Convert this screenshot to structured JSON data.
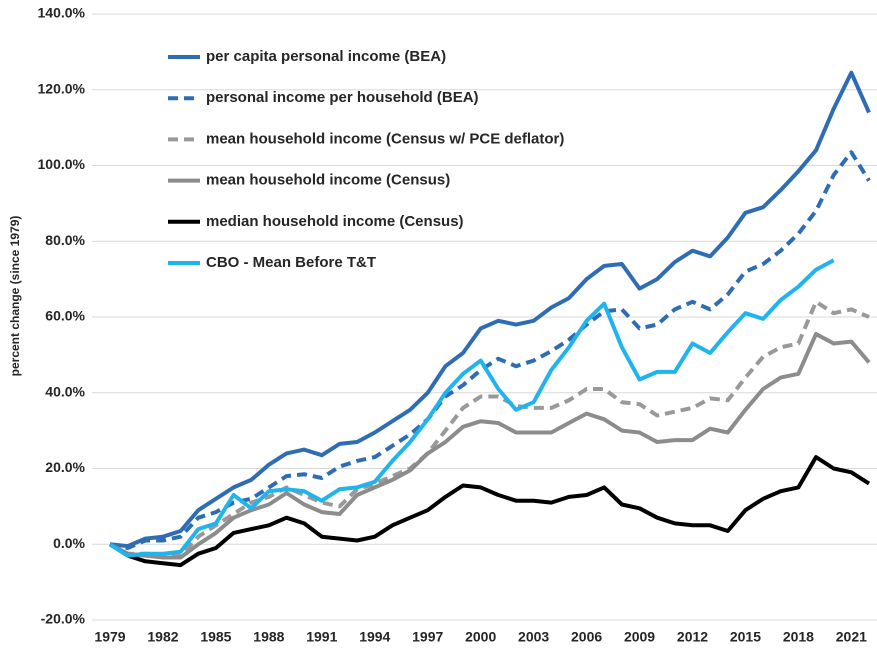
{
  "chart_data": {
    "type": "line",
    "y_label": "percent change (since 1979)",
    "x": [
      1979,
      1980,
      1981,
      1982,
      1983,
      1984,
      1985,
      1986,
      1987,
      1988,
      1989,
      1990,
      1991,
      1992,
      1993,
      1994,
      1995,
      1996,
      1997,
      1998,
      1999,
      2000,
      2001,
      2002,
      2003,
      2004,
      2005,
      2006,
      2007,
      2008,
      2009,
      2010,
      2011,
      2012,
      2013,
      2014,
      2015,
      2016,
      2017,
      2018,
      2019,
      2020,
      2021,
      2022
    ],
    "xlim": [
      1979,
      2022
    ],
    "xticks": [
      1979,
      1982,
      1985,
      1988,
      1991,
      1994,
      1997,
      2000,
      2003,
      2006,
      2009,
      2012,
      2015,
      2018,
      2021
    ],
    "ylim": [
      -20,
      140
    ],
    "yticks": [
      {
        "value": -20,
        "label": "-20.0%"
      },
      {
        "value": 0,
        "label": "0.0%"
      },
      {
        "value": 20,
        "label": "20.0%"
      },
      {
        "value": 40,
        "label": "40.0%"
      },
      {
        "value": 60,
        "label": "60.0%"
      },
      {
        "value": 80,
        "label": "80.0%"
      },
      {
        "value": 100,
        "label": "100.0%"
      },
      {
        "value": 120,
        "label": "120.0%"
      },
      {
        "value": 140,
        "label": "140.0%"
      }
    ],
    "grid": true,
    "legend": "top-left",
    "series": [
      {
        "name": "per capita personal income (BEA)",
        "color": "#2e6db4",
        "dashed": false,
        "values": [
          0,
          -0.5,
          1.5,
          2,
          3.5,
          9,
          12,
          15,
          17,
          21,
          24,
          25,
          23.5,
          26.5,
          27,
          29.5,
          32.5,
          35.5,
          40,
          47,
          50.5,
          57,
          59,
          58,
          59,
          62.5,
          65,
          70,
          73.5,
          74,
          67.5,
          70,
          74.5,
          77.5,
          76,
          81,
          87.5,
          89,
          93.5,
          98.5,
          104,
          115,
          124.5,
          114
        ]
      },
      {
        "name": "personal income per household (BEA)",
        "color": "#2e6db4",
        "dashed": true,
        "values": [
          0,
          -1,
          1,
          1,
          2,
          7,
          8.5,
          11,
          12,
          15,
          18,
          18.5,
          17.5,
          20.5,
          22,
          23,
          26,
          29,
          33,
          39,
          42,
          46,
          49,
          47,
          48.5,
          51,
          54,
          58,
          61.5,
          62,
          57,
          58,
          62,
          64,
          62,
          66,
          72,
          74,
          77.5,
          82,
          88,
          97.5,
          103.5,
          96
        ]
      },
      {
        "name": "mean household income (Census w/ PCE deflator)",
        "color": "#999999",
        "dashed": true,
        "values": [
          0,
          -2.5,
          -2.5,
          -3,
          -3,
          2,
          5,
          8,
          11,
          12.5,
          15,
          13,
          11,
          10,
          14.5,
          16,
          18,
          20,
          24,
          30,
          36,
          39,
          39,
          36.5,
          36,
          36,
          38,
          41,
          41,
          37.5,
          37,
          34,
          35,
          36,
          38.5,
          38,
          44,
          49.5,
          52,
          53,
          64,
          61,
          62,
          60
        ]
      },
      {
        "name": "mean household income (Census)",
        "color": "#8c8c8c",
        "dashed": false,
        "values": [
          0,
          -2.5,
          -3,
          -3.5,
          -3.5,
          0,
          3,
          7,
          9,
          10.5,
          13.5,
          10.5,
          8.5,
          8,
          13,
          15,
          17,
          19.5,
          24,
          27,
          31,
          32.5,
          32,
          29.5,
          29.5,
          29.5,
          32,
          34.5,
          33,
          30,
          29.5,
          27,
          27.5,
          27.5,
          30.5,
          29.5,
          35.5,
          41,
          44,
          45,
          55.5,
          53,
          53.5,
          48
        ]
      },
      {
        "name": "median household income (Census)",
        "color": "#000000",
        "dashed": false,
        "values": [
          0,
          -3,
          -4.5,
          -5,
          -5.5,
          -2.5,
          -1,
          3,
          4,
          5,
          7,
          5.5,
          2,
          1.5,
          1,
          2,
          5,
          7,
          9,
          12.5,
          15.5,
          15,
          13,
          11.5,
          11.5,
          11,
          12.5,
          13,
          15,
          10.5,
          9.5,
          7,
          5.5,
          5,
          5,
          3.5,
          9,
          12,
          14,
          15,
          23,
          20,
          19,
          16
        ]
      },
      {
        "name": "CBO - Mean Before T&T",
        "color": "#1fb4ee",
        "dashed": false,
        "values": [
          0,
          -3,
          -2.5,
          -2.5,
          -2,
          4,
          5.5,
          13,
          9.5,
          14,
          14.5,
          14,
          11.5,
          14.5,
          15,
          16.5,
          22,
          27,
          33,
          40,
          45,
          48.5,
          41,
          35.5,
          37.5,
          46,
          52,
          59,
          63.5,
          52,
          43.5,
          45.5,
          45.5,
          53,
          50.5,
          56,
          61,
          59.5,
          64.5,
          68,
          72.5,
          75,
          null,
          null
        ]
      }
    ]
  }
}
